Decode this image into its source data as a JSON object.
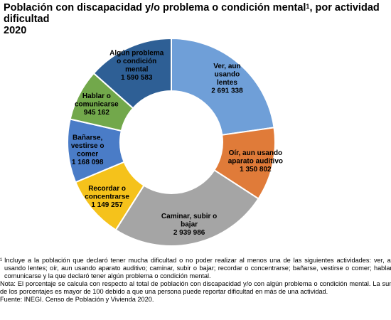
{
  "title": {
    "line1": "Población con discapacidad y/o problema o condición mental",
    "sup": "1",
    "line1_end": ", por actividad",
    "line2": "dificultad",
    "line3": "2020"
  },
  "chart_data": {
    "type": "pie",
    "variant": "donut",
    "title": "Población con discapacidad y/o problema o condición mental1, por actividad dificultad 2020",
    "slices": [
      {
        "label": "Ver, aun usando lentes",
        "value": 2691338,
        "value_label": "2 691 338",
        "color": "#6f9fd8"
      },
      {
        "label": "Oír, aun usando aparato auditivo",
        "value": 1350802,
        "value_label": "1 350 802",
        "color": "#e07b39"
      },
      {
        "label": "Caminar, subir o bajar",
        "value": 2939986,
        "value_label": "2 939 986",
        "color": "#a5a5a5"
      },
      {
        "label": "Recordar o concentrarse",
        "value": 1149257,
        "value_label": "1 149 257",
        "color": "#f5c21b"
      },
      {
        "label": "Bañarse, vestirse o comer",
        "value": 1168098,
        "value_label": "1 168 098",
        "color": "#4a7cc7"
      },
      {
        "label": "Hablar o comunicarse",
        "value": 945162,
        "value_label": "945 162",
        "color": "#72a84b"
      },
      {
        "label": "Algún problema o condición mental",
        "value": 1590583,
        "value_label": "1 590 583",
        "color": "#2e5f95"
      }
    ],
    "legend": "none"
  },
  "notes": {
    "note1_mark": "¹",
    "note1": "Incluye a la población que declaró tener mucha dificultad o no poder realizar al menos una de las siguientes actividades: ver, aun usando lentes; oír, aun usando aparato auditivo; caminar, subir o bajar; recordar o concentrarse; bañarse, vestirse o comer; hablar o comunicarse y la que declaró tener algún problema o condición mental.",
    "note2": "Nota: El porcentaje se calcula con respecto al total de población con discapacidad y/o con algún problema o condición mental. La suma de los porcentajes es mayor de 100 debido a que una persona puede reportar dificultad en más de una actividad.",
    "source": "Fuente: INEGI. Censo de Población y Vivienda 2020."
  }
}
